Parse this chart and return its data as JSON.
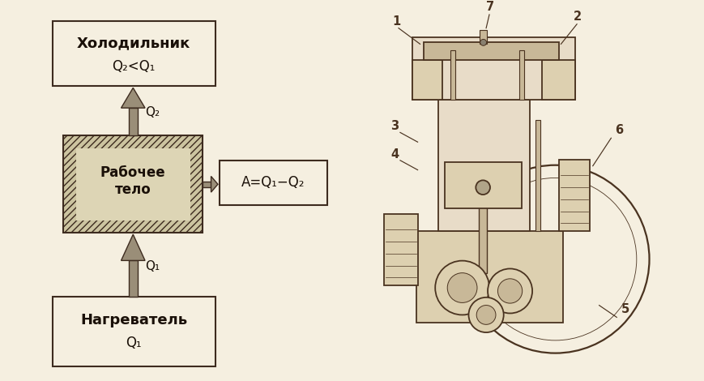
{
  "bg_color": "#f5efe0",
  "line_color": "#3d2b1f",
  "arrow_fill": "#9a8e78",
  "arrow_dark": "#3d2b1f",
  "text_color": "#1a1008",
  "холодильник_line1": "Холодильник",
  "холодильник_line2": "Q₂<Q₁",
  "рабочее_line1": "Рабочее",
  "рабочее_line2": "тело",
  "нагреватель_line1": "Нагреватель",
  "нагреватель_line2": "Q₁",
  "work_text": "A=Q₁−Q₂",
  "q2_label": "Q₂",
  "q1_label": "Q₁",
  "engine_labels": [
    "1",
    "2",
    "3",
    "4",
    "5",
    "6",
    "7"
  ]
}
